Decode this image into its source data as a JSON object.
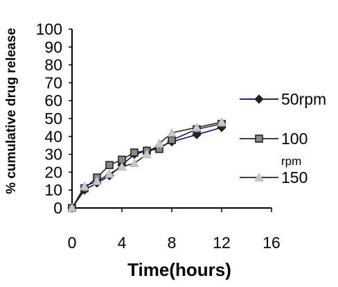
{
  "chart_data": {
    "type": "line",
    "title": "",
    "xlabel": "Time(hours)",
    "ylabel": "% cumulative drug release",
    "xlim": [
      0,
      16
    ],
    "ylim": [
      0,
      100
    ],
    "xticks": [
      "0",
      "4",
      "8",
      "12",
      "16"
    ],
    "yticks": [
      "0",
      "10",
      "20",
      "30",
      "40",
      "50",
      "60",
      "70",
      "80",
      "90",
      "100"
    ],
    "grid": false,
    "legend_position": "right",
    "series": [
      {
        "name": "50rpm",
        "color": "#000080",
        "marker": "diamond",
        "x": [
          0,
          1,
          2,
          3,
          4,
          5,
          6,
          7,
          8,
          10,
          12
        ],
        "y": [
          0,
          10,
          14,
          18,
          24,
          30,
          32,
          34,
          37,
          41,
          45
        ]
      },
      {
        "name": "100 rpm",
        "color": "#222222",
        "marker": "square",
        "x": [
          0,
          1,
          2,
          3,
          4,
          5,
          6,
          7,
          8,
          10,
          12
        ],
        "y": [
          0,
          11,
          17,
          24,
          27,
          31,
          32,
          33,
          38,
          44,
          47
        ]
      },
      {
        "name": "150",
        "color": "#222222",
        "marker": "triangle",
        "x": [
          0,
          1,
          2,
          3,
          4,
          5,
          6,
          7,
          8,
          10,
          12
        ],
        "y": [
          0,
          12,
          15,
          19,
          23,
          25,
          30,
          36,
          42,
          45,
          48
        ]
      }
    ]
  }
}
